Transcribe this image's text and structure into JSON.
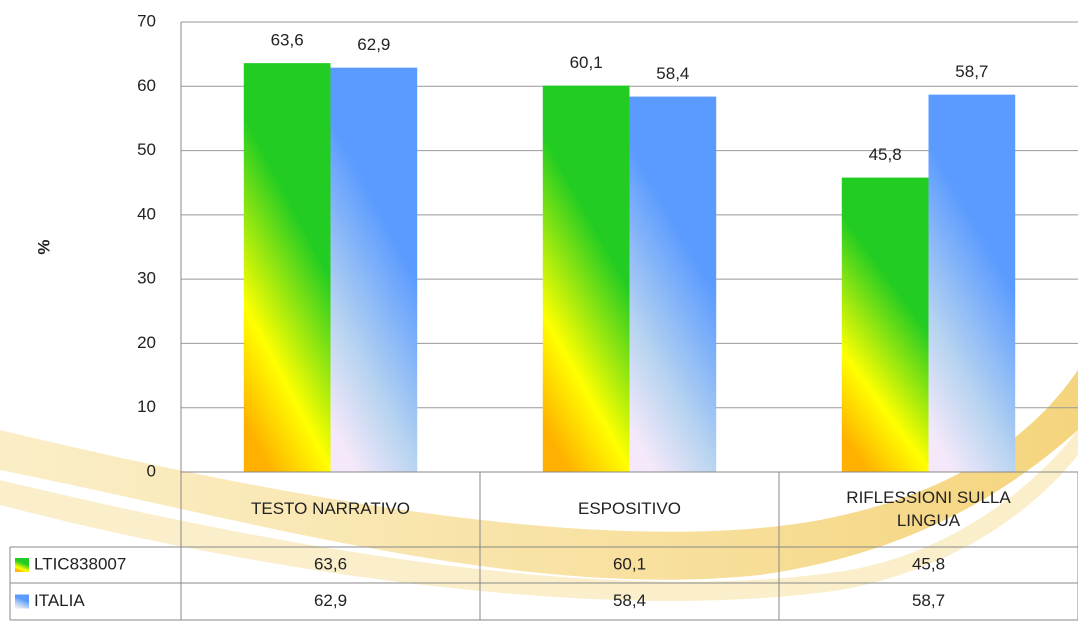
{
  "chart_data": {
    "type": "bar",
    "y_label": "%",
    "categories": [
      "TESTO NARRATIVO",
      "ESPOSITIVO",
      "RIFLESSIONI SULLA LINGUA"
    ],
    "series": [
      {
        "name": "LTIC838007",
        "color": "#22cc22",
        "values": [
          63.6,
          60.1,
          45.8
        ],
        "value_labels": [
          "63,6",
          "60,1",
          "45,8"
        ]
      },
      {
        "name": "ITALIA",
        "color": "#5b9bff",
        "values": [
          62.9,
          58.4,
          58.7
        ],
        "value_labels": [
          "62,9",
          "58,4",
          "58,7"
        ]
      }
    ],
    "ylim": [
      0,
      70
    ],
    "yticks": [
      0,
      10,
      20,
      30,
      40,
      50,
      60,
      70
    ],
    "grid": true,
    "data_table": true
  }
}
